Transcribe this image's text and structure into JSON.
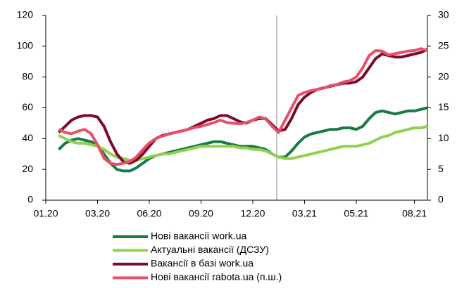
{
  "chart_data": {
    "type": "line",
    "categories": [
      "01.20",
      null,
      null,
      null,
      null,
      null,
      null,
      null,
      "03.20",
      null,
      null,
      null,
      null,
      null,
      null,
      null,
      "06.20",
      null,
      null,
      null,
      null,
      null,
      null,
      null,
      "09.20",
      null,
      null,
      null,
      null,
      null,
      null,
      null,
      "12.20",
      null,
      null,
      null,
      null,
      null,
      null,
      null,
      "03.21",
      null,
      null,
      null,
      null,
      null,
      null,
      null,
      "05.21",
      null,
      null,
      null,
      null,
      null,
      null,
      null,
      null,
      "08.21",
      null,
      null
    ],
    "ylim": [
      0,
      120
    ],
    "yticks": [
      0,
      20,
      40,
      60,
      80,
      100,
      120
    ],
    "y2lim": [
      0,
      30
    ],
    "y2ticks": [
      0,
      5,
      10,
      15,
      20,
      25,
      30
    ],
    "series": [
      {
        "name": "Нові вакансії work.ua",
        "color": "#1a7a45",
        "values": [
          null,
          null,
          33,
          37,
          39,
          40,
          39,
          38,
          36,
          30,
          24,
          20,
          19,
          19,
          21,
          24,
          27,
          29,
          30,
          31,
          32,
          33,
          34,
          35,
          36,
          37,
          38,
          38,
          37,
          36,
          35,
          35,
          35,
          34,
          33,
          30,
          28,
          28,
          32,
          37,
          41,
          43,
          44,
          45,
          46,
          46,
          47,
          47,
          46,
          48,
          53,
          57,
          58,
          57,
          56,
          57,
          58,
          58,
          59,
          60
        ]
      },
      {
        "name": "Актуальні вакансії (ДСЗУ)",
        "color": "#92d050",
        "values": [
          null,
          null,
          42,
          40,
          38,
          37,
          37,
          36,
          35,
          33,
          30,
          28,
          27,
          26,
          26,
          27,
          28,
          29,
          30,
          30,
          31,
          32,
          33,
          34,
          35,
          35,
          35,
          35,
          35,
          35,
          34,
          34,
          33,
          33,
          32,
          30,
          28,
          27,
          27,
          28,
          29,
          30,
          31,
          32,
          33,
          34,
          35,
          35,
          35,
          36,
          37,
          39,
          41,
          42,
          44,
          45,
          46,
          47,
          47,
          48
        ]
      },
      {
        "name": "Вакансії в базі work.ua",
        "color": "#7b0b2b",
        "values": [
          null,
          null,
          44,
          48,
          52,
          54,
          55,
          55,
          54,
          48,
          38,
          30,
          25,
          24,
          26,
          30,
          35,
          40,
          42,
          43,
          44,
          45,
          46,
          48,
          50,
          52,
          53,
          55,
          55,
          53,
          51,
          50,
          52,
          53,
          53,
          49,
          45,
          46,
          53,
          62,
          67,
          70,
          72,
          73,
          74,
          75,
          76,
          76,
          77,
          80,
          86,
          92,
          95,
          94,
          93,
          93,
          94,
          95,
          96,
          98
        ]
      },
      {
        "name": "Нові вакансії rabota.ua (п.ш.)",
        "color": "#e8506a",
        "axis": "y2",
        "values": [
          null,
          null,
          11.5,
          11,
          10.8,
          11.2,
          11.5,
          10.8,
          9,
          6.8,
          6,
          5.8,
          6,
          6.3,
          7,
          8.2,
          9.3,
          10,
          10.4,
          10.7,
          11,
          11.2,
          11.5,
          11.8,
          12,
          12.3,
          12.6,
          13,
          12.6,
          12.5,
          12.4,
          12.6,
          13,
          13.5,
          13.2,
          12,
          11,
          13,
          15,
          17,
          17.5,
          17.8,
          18,
          18.2,
          18.6,
          18.8,
          19.2,
          19.4,
          20,
          21.5,
          23.5,
          24.3,
          24.2,
          23.6,
          23.8,
          24,
          24.2,
          24.3,
          24.6,
          24.3
        ]
      }
    ]
  }
}
